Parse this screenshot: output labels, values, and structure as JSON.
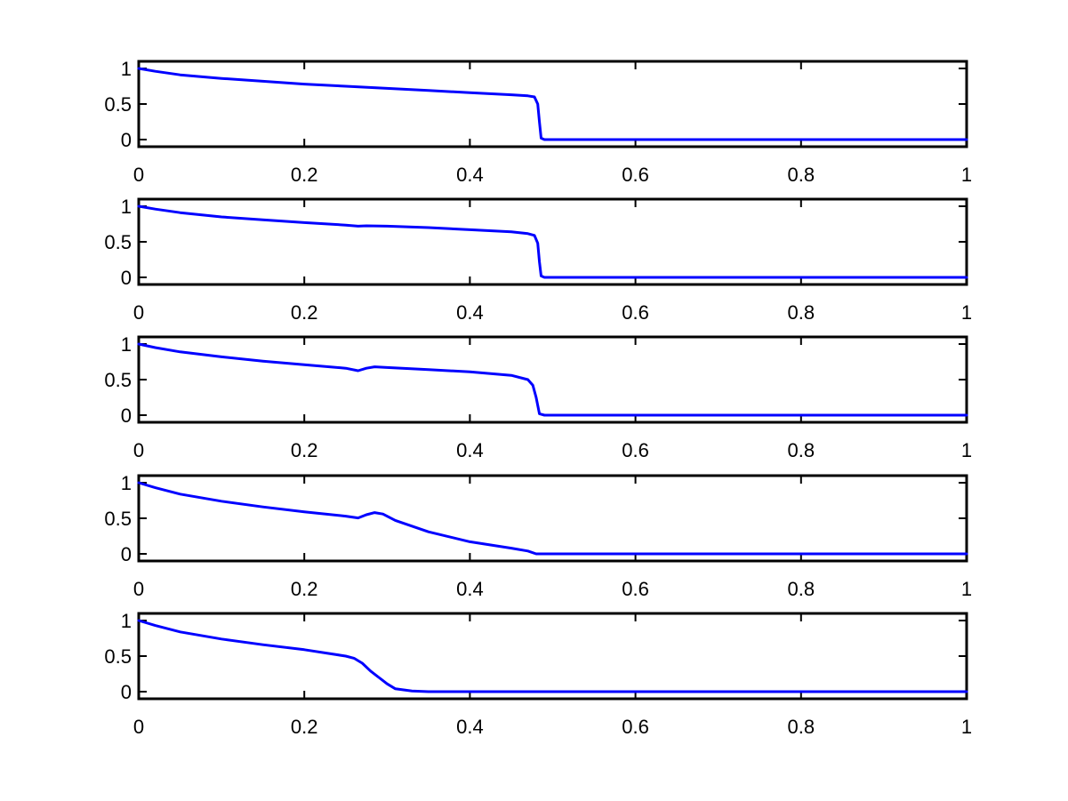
{
  "chart_data": [
    {
      "type": "line",
      "title": "",
      "xlabel": "",
      "ylabel": "",
      "xlim": [
        0,
        1
      ],
      "ylim": [
        -0.1,
        1.1
      ],
      "xticks": [
        0,
        0.2,
        0.4,
        0.6,
        0.8,
        1
      ],
      "xtick_labels": [
        "0",
        "0.2",
        "0.4",
        "0.6",
        "0.8",
        "1"
      ],
      "yticks": [
        0,
        0.5,
        1
      ],
      "ytick_labels": [
        "0",
        "0.5",
        "1"
      ],
      "grid": false,
      "series": [
        {
          "color": "#0000ff",
          "x": [
            0,
            0.02,
            0.05,
            0.1,
            0.15,
            0.2,
            0.25,
            0.3,
            0.35,
            0.4,
            0.45,
            0.47,
            0.478,
            0.482,
            0.484,
            0.486,
            0.49,
            0.5,
            0.6,
            0.7,
            0.8,
            0.9,
            1.0
          ],
          "y": [
            1.0,
            0.96,
            0.91,
            0.86,
            0.82,
            0.78,
            0.75,
            0.72,
            0.69,
            0.66,
            0.63,
            0.615,
            0.6,
            0.5,
            0.25,
            0.02,
            0.0,
            0.0,
            0.0,
            0.0,
            0.0,
            0.0,
            0.0
          ]
        }
      ]
    },
    {
      "type": "line",
      "title": "",
      "xlabel": "",
      "ylabel": "",
      "xlim": [
        0,
        1
      ],
      "ylim": [
        -0.1,
        1.1
      ],
      "xticks": [
        0,
        0.2,
        0.4,
        0.6,
        0.8,
        1
      ],
      "xtick_labels": [
        "0",
        "0.2",
        "0.4",
        "0.6",
        "0.8",
        "1"
      ],
      "yticks": [
        0,
        0.5,
        1
      ],
      "ytick_labels": [
        "0",
        "0.5",
        "1"
      ],
      "grid": false,
      "series": [
        {
          "color": "#0000ff",
          "x": [
            0,
            0.02,
            0.05,
            0.1,
            0.15,
            0.2,
            0.25,
            0.265,
            0.275,
            0.3,
            0.35,
            0.4,
            0.45,
            0.47,
            0.478,
            0.482,
            0.484,
            0.486,
            0.49,
            0.5,
            0.6,
            0.7,
            0.8,
            0.9,
            1.0
          ],
          "y": [
            1.0,
            0.96,
            0.91,
            0.85,
            0.81,
            0.77,
            0.735,
            0.72,
            0.725,
            0.72,
            0.7,
            0.67,
            0.64,
            0.615,
            0.59,
            0.48,
            0.22,
            0.02,
            0.0,
            0.0,
            0.0,
            0.0,
            0.0,
            0.0,
            0.0
          ]
        }
      ]
    },
    {
      "type": "line",
      "title": "",
      "xlabel": "",
      "ylabel": "",
      "xlim": [
        0,
        1
      ],
      "ylim": [
        -0.1,
        1.1
      ],
      "xticks": [
        0,
        0.2,
        0.4,
        0.6,
        0.8,
        1
      ],
      "xtick_labels": [
        "0",
        "0.2",
        "0.4",
        "0.6",
        "0.8",
        "1"
      ],
      "yticks": [
        0,
        0.5,
        1
      ],
      "ytick_labels": [
        "0",
        "0.5",
        "1"
      ],
      "grid": false,
      "series": [
        {
          "color": "#0000ff",
          "x": [
            0,
            0.02,
            0.05,
            0.1,
            0.15,
            0.2,
            0.25,
            0.265,
            0.275,
            0.285,
            0.3,
            0.35,
            0.4,
            0.45,
            0.47,
            0.476,
            0.48,
            0.484,
            0.49,
            0.5,
            0.6,
            0.7,
            0.8,
            0.9,
            1.0
          ],
          "y": [
            1.0,
            0.95,
            0.89,
            0.82,
            0.76,
            0.71,
            0.66,
            0.625,
            0.66,
            0.68,
            0.67,
            0.64,
            0.61,
            0.56,
            0.5,
            0.42,
            0.25,
            0.02,
            0.0,
            0.0,
            0.0,
            0.0,
            0.0,
            0.0,
            0.0
          ]
        }
      ]
    },
    {
      "type": "line",
      "title": "",
      "xlabel": "",
      "ylabel": "",
      "xlim": [
        0,
        1
      ],
      "ylim": [
        -0.1,
        1.1
      ],
      "xticks": [
        0,
        0.2,
        0.4,
        0.6,
        0.8,
        1
      ],
      "xtick_labels": [
        "0",
        "0.2",
        "0.4",
        "0.6",
        "0.8",
        "1"
      ],
      "yticks": [
        0,
        0.5,
        1
      ],
      "ytick_labels": [
        "0",
        "0.5",
        "1"
      ],
      "grid": false,
      "series": [
        {
          "color": "#0000ff",
          "x": [
            0,
            0.02,
            0.05,
            0.1,
            0.15,
            0.2,
            0.25,
            0.265,
            0.275,
            0.285,
            0.295,
            0.31,
            0.35,
            0.4,
            0.45,
            0.47,
            0.48,
            0.5,
            0.6,
            0.7,
            0.8,
            0.9,
            1.0
          ],
          "y": [
            1.0,
            0.93,
            0.84,
            0.74,
            0.66,
            0.59,
            0.53,
            0.505,
            0.55,
            0.58,
            0.56,
            0.47,
            0.31,
            0.17,
            0.08,
            0.04,
            0.0,
            0.0,
            0.0,
            0.0,
            0.0,
            0.0,
            0.0
          ]
        }
      ]
    },
    {
      "type": "line",
      "title": "",
      "xlabel": "",
      "ylabel": "",
      "xlim": [
        0,
        1
      ],
      "ylim": [
        -0.1,
        1.1
      ],
      "xticks": [
        0,
        0.2,
        0.4,
        0.6,
        0.8,
        1
      ],
      "xtick_labels": [
        "0",
        "0.2",
        "0.4",
        "0.6",
        "0.8",
        "1"
      ],
      "yticks": [
        0,
        0.5,
        1
      ],
      "ytick_labels": [
        "0",
        "0.5",
        "1"
      ],
      "grid": false,
      "series": [
        {
          "color": "#0000ff",
          "x": [
            0,
            0.02,
            0.05,
            0.1,
            0.15,
            0.2,
            0.25,
            0.26,
            0.27,
            0.28,
            0.29,
            0.3,
            0.31,
            0.33,
            0.35,
            0.4,
            0.5,
            0.6,
            0.7,
            0.8,
            0.9,
            1.0
          ],
          "y": [
            1.0,
            0.93,
            0.84,
            0.74,
            0.66,
            0.59,
            0.5,
            0.47,
            0.4,
            0.29,
            0.2,
            0.11,
            0.04,
            0.01,
            0.0,
            0.0,
            0.0,
            0.0,
            0.0,
            0.0,
            0.0,
            0.0
          ]
        }
      ]
    }
  ]
}
